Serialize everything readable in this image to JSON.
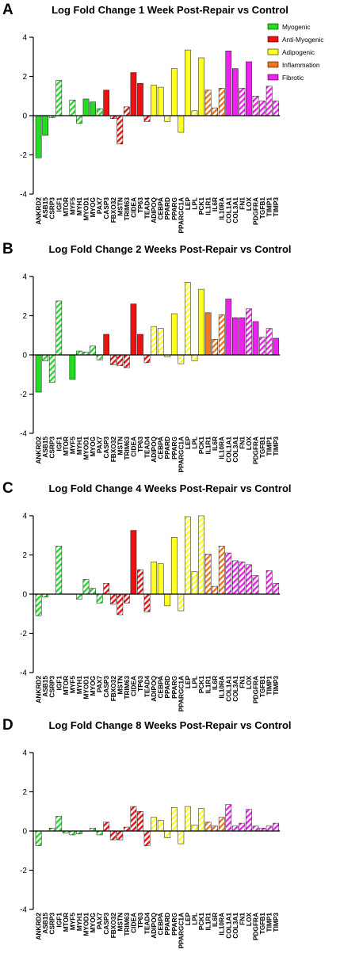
{
  "genes": [
    "ANKRD2",
    "ASB15",
    "CSRP3",
    "IGF1",
    "MTOR",
    "MYF5",
    "MYH1",
    "MYOD1",
    "MYOG",
    "PAX7",
    "CASP3",
    "FBXO32",
    "MSTN",
    "TRIM63",
    "CIDEA",
    "TP63",
    "TEAD4",
    "ADIPOQ",
    "CEBPA",
    "PPARD",
    "PPARG",
    "PPARGC1A",
    "LEP",
    "LPL",
    "PCK1",
    "IL1R1",
    "IL6R",
    "IL10RA",
    "COL1A1",
    "COL3A1",
    "FN1",
    "LOX",
    "PDGFRA",
    "TGFB1",
    "TIMP1",
    "TIMP3"
  ],
  "gene_groups": [
    "myogenic",
    "myogenic",
    "myogenic",
    "myogenic",
    "myogenic",
    "myogenic",
    "myogenic",
    "myogenic",
    "myogenic",
    "myogenic",
    "anti",
    "anti",
    "anti",
    "anti",
    "anti",
    "anti",
    "anti",
    "adipo",
    "adipo",
    "adipo",
    "adipo",
    "adipo",
    "adipo",
    "adipo",
    "adipo",
    "inflam",
    "inflam",
    "inflam",
    "fibro",
    "fibro",
    "fibro",
    "fibro",
    "fibro",
    "fibro",
    "fibro",
    "fibro"
  ],
  "colors": {
    "myogenic": "#22dd22",
    "anti": "#ee1111",
    "adipo": "#ffff22",
    "inflam": "#ee7722",
    "fibro": "#ee22ee"
  },
  "legend": [
    {
      "label": "Myogenic",
      "group": "myogenic"
    },
    {
      "label": "Anti-Myogenic",
      "group": "anti"
    },
    {
      "label": "Adipogenic",
      "group": "adipo"
    },
    {
      "label": "Inflammation",
      "group": "inflam"
    },
    {
      "label": "Fibrotic",
      "group": "fibro"
    }
  ],
  "panels": [
    {
      "letter": "A",
      "title": "Log Fold Change 1 Week Post-Repair vs Control"
    },
    {
      "letter": "B",
      "title": "Log Fold Change 2 Weeks Post-Repair vs Control"
    },
    {
      "letter": "C",
      "title": "Log Fold Change 4 Weeks Post-Repair vs Control"
    },
    {
      "letter": "D",
      "title": "Log Fold Change 8 Weeks Post-Repair vs Control"
    }
  ],
  "chart_data": [
    {
      "type": "bar",
      "title": "Log Fold Change 1 Week Post-Repair vs Control",
      "ylim": [
        -4,
        4
      ],
      "yticks": [
        -4,
        -2,
        0,
        2,
        4
      ],
      "legend_position": "top-right",
      "categories": [
        "ANKRD2",
        "ASB15",
        "CSRP3",
        "IGF1",
        "MTOR",
        "MYF5",
        "MYH1",
        "MYOD1",
        "MYOG",
        "PAX7",
        "CASP3",
        "FBXO32",
        "MSTN",
        "TRIM63",
        "CIDEA",
        "TP63",
        "TEAD4",
        "ADIPOQ",
        "CEBPA",
        "PPARD",
        "PPARG",
        "PPARGC1A",
        "LEP",
        "LPL",
        "PCK1",
        "IL1R1",
        "IL6R",
        "IL10RA",
        "COL1A1",
        "COL3A1",
        "FN1",
        "LOX",
        "PDGFRA",
        "TGFB1",
        "TIMP1",
        "TIMP3"
      ],
      "values": [
        -2.15,
        -1.0,
        -0.1,
        1.8,
        0,
        0.8,
        -0.4,
        0.85,
        0.7,
        0.35,
        1.3,
        -0.15,
        -1.45,
        0.45,
        2.2,
        1.65,
        -0.3,
        1.55,
        1.45,
        -0.3,
        2.4,
        -0.85,
        3.35,
        0.25,
        2.95,
        1.3,
        0.4,
        1.4,
        3.3,
        2.4,
        1.4,
        2.75,
        1.0,
        0.75,
        1.5,
        0.75
      ],
      "hatched": [
        false,
        false,
        true,
        true,
        false,
        true,
        true,
        false,
        false,
        true,
        false,
        true,
        true,
        true,
        false,
        false,
        true,
        false,
        false,
        true,
        false,
        false,
        false,
        true,
        false,
        true,
        true,
        true,
        false,
        false,
        true,
        false,
        true,
        true,
        true,
        true
      ]
    },
    {
      "type": "bar",
      "title": "Log Fold Change 2 Weeks Post-Repair vs Control",
      "ylim": [
        -4,
        4
      ],
      "yticks": [
        -4,
        -2,
        0,
        2,
        4
      ],
      "categories": [
        "ANKRD2",
        "ASB15",
        "CSRP3",
        "IGF1",
        "MTOR",
        "MYF5",
        "MYH1",
        "MYOD1",
        "MYOG",
        "PAX7",
        "CASP3",
        "FBXO32",
        "MSTN",
        "TRIM63",
        "CIDEA",
        "TP63",
        "TEAD4",
        "ADIPOQ",
        "CEBPA",
        "PPARD",
        "PPARG",
        "PPARGC1A",
        "LEP",
        "LPL",
        "PCK1",
        "IL1R1",
        "IL6R",
        "IL10RA",
        "COL1A1",
        "COL3A1",
        "FN1",
        "LOX",
        "PDGFRA",
        "TGFB1",
        "TIMP1",
        "TIMP3"
      ],
      "values": [
        -1.9,
        -0.3,
        -1.4,
        2.75,
        0,
        -1.25,
        0.2,
        0.15,
        0.45,
        -0.25,
        1.05,
        -0.5,
        -0.55,
        -0.65,
        2.6,
        1.05,
        -0.4,
        1.45,
        1.35,
        -0.1,
        2.1,
        -0.45,
        3.7,
        -0.3,
        3.35,
        2.15,
        0.8,
        2.05,
        2.85,
        1.9,
        1.9,
        2.35,
        1.7,
        0.9,
        1.35,
        0.85
      ],
      "hatched": [
        false,
        true,
        true,
        true,
        false,
        false,
        true,
        true,
        true,
        true,
        false,
        true,
        true,
        true,
        false,
        false,
        true,
        true,
        true,
        true,
        false,
        true,
        true,
        true,
        false,
        false,
        true,
        true,
        false,
        false,
        false,
        true,
        false,
        true,
        true,
        false
      ]
    },
    {
      "type": "bar",
      "title": "Log Fold Change 4 Weeks Post-Repair vs Control",
      "ylim": [
        -4,
        4
      ],
      "yticks": [
        -4,
        -2,
        0,
        2,
        4
      ],
      "categories": [
        "ANKRD2",
        "ASB15",
        "CSRP3",
        "IGF1",
        "MTOR",
        "MYF5",
        "MYH1",
        "MYOD1",
        "MYOG",
        "PAX7",
        "CASP3",
        "FBXO32",
        "MSTN",
        "TRIM63",
        "CIDEA",
        "TP63",
        "TEAD4",
        "ADIPOQ",
        "CEBPA",
        "PPARD",
        "PPARG",
        "PPARGC1A",
        "LEP",
        "LPL",
        "PCK1",
        "IL1R1",
        "IL6R",
        "IL10RA",
        "COL1A1",
        "COL3A1",
        "FN1",
        "LOX",
        "PDGFRA",
        "TGFB1",
        "TIMP1",
        "TIMP3"
      ],
      "values": [
        -1.1,
        -0.15,
        0,
        2.45,
        0,
        0,
        -0.25,
        0.75,
        0.3,
        -0.45,
        0.55,
        -0.5,
        -1.05,
        -0.45,
        3.25,
        1.25,
        -0.9,
        1.65,
        1.55,
        -0.6,
        2.9,
        -0.85,
        3.95,
        1.15,
        4.0,
        2.05,
        0.4,
        2.45,
        2.1,
        1.7,
        1.65,
        1.5,
        0.95,
        0,
        1.2,
        0.55
      ],
      "hatched": [
        true,
        true,
        true,
        true,
        false,
        false,
        true,
        true,
        true,
        true,
        true,
        true,
        true,
        true,
        false,
        true,
        true,
        false,
        false,
        false,
        false,
        true,
        true,
        true,
        true,
        true,
        true,
        true,
        true,
        true,
        true,
        true,
        true,
        false,
        true,
        true
      ]
    },
    {
      "type": "bar",
      "title": "Log Fold Change 8 Weeks Post-Repair vs Control",
      "ylim": [
        -4,
        4
      ],
      "yticks": [
        -4,
        -2,
        0,
        2,
        4
      ],
      "categories": [
        "ANKRD2",
        "ASB15",
        "CSRP3",
        "IGF1",
        "MTOR",
        "MYF5",
        "MYH1",
        "MYOD1",
        "MYOG",
        "PAX7",
        "CASP3",
        "FBXO32",
        "MSTN",
        "TRIM63",
        "CIDEA",
        "TP63",
        "TEAD4",
        "ADIPOQ",
        "CEBPA",
        "PPARD",
        "PPARG",
        "PPARGC1A",
        "LEP",
        "LPL",
        "PCK1",
        "IL1R1",
        "IL6R",
        "IL10RA",
        "COL1A1",
        "COL3A1",
        "FN1",
        "LOX",
        "PDGFRA",
        "TGFB1",
        "TIMP1",
        "TIMP3"
      ],
      "values": [
        -0.75,
        0,
        0.15,
        0.75,
        -0.1,
        -0.2,
        -0.15,
        0,
        0.15,
        -0.2,
        0.45,
        -0.45,
        -0.45,
        0.2,
        1.25,
        1.0,
        -0.75,
        0.7,
        0.55,
        -0.35,
        1.2,
        -0.65,
        1.25,
        0.3,
        1.15,
        0.45,
        0.25,
        0.7,
        1.35,
        0.25,
        0.4,
        1.1,
        0.25,
        0.15,
        0.25,
        0.4
      ],
      "hatched": [
        true,
        true,
        true,
        true,
        true,
        true,
        true,
        true,
        true,
        true,
        true,
        true,
        true,
        true,
        true,
        true,
        true,
        true,
        true,
        true,
        true,
        true,
        true,
        true,
        true,
        true,
        true,
        true,
        true,
        true,
        true,
        true,
        true,
        true,
        true,
        true
      ]
    }
  ]
}
